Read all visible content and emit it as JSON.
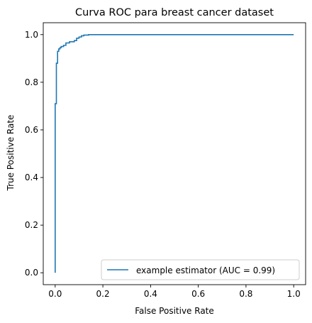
{
  "chart_data": {
    "type": "line",
    "title": "Curva ROC para breast cancer dataset",
    "xlabel": "False Positive Rate",
    "ylabel": "True Positive Rate",
    "xlim": [
      -0.05,
      1.05
    ],
    "ylim": [
      -0.05,
      1.05
    ],
    "xticks": [
      0.0,
      0.2,
      0.4,
      0.6,
      0.8,
      1.0
    ],
    "yticks": [
      0.0,
      0.2,
      0.4,
      0.6,
      0.8,
      1.0
    ],
    "xtick_labels": [
      "0.0",
      "0.2",
      "0.4",
      "0.6",
      "0.8",
      "1.0"
    ],
    "ytick_labels": [
      "0.0",
      "0.2",
      "0.4",
      "0.6",
      "0.8",
      "1.0"
    ],
    "grid": false,
    "legend_position": "lower right",
    "series": [
      {
        "name": "example estimator (AUC = 0.99)",
        "color": "#1f77b4",
        "x": [
          0.0,
          0.0,
          0.005,
          0.005,
          0.01,
          0.01,
          0.015,
          0.015,
          0.02,
          0.02,
          0.025,
          0.025,
          0.035,
          0.035,
          0.045,
          0.045,
          0.06,
          0.06,
          0.08,
          0.08,
          0.09,
          0.09,
          0.1,
          0.1,
          0.11,
          0.11,
          0.12,
          0.12,
          0.14,
          0.14,
          1.0
        ],
        "y": [
          0.0,
          0.71,
          0.71,
          0.88,
          0.88,
          0.93,
          0.93,
          0.94,
          0.94,
          0.945,
          0.945,
          0.95,
          0.95,
          0.955,
          0.955,
          0.965,
          0.965,
          0.97,
          0.97,
          0.975,
          0.975,
          0.985,
          0.985,
          0.99,
          0.99,
          0.995,
          0.995,
          0.998,
          0.998,
          1.0,
          1.0
        ]
      }
    ]
  }
}
